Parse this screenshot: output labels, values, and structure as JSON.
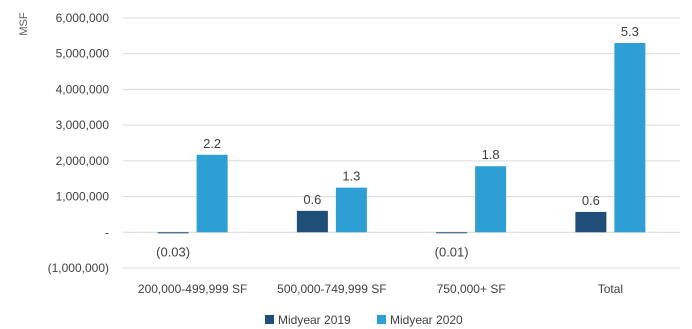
{
  "chart_data": {
    "type": "bar",
    "ylabel": "MSF",
    "ylim": [
      -1000000,
      6000000
    ],
    "yticks": [
      -1000000,
      0,
      1000000,
      2000000,
      3000000,
      4000000,
      5000000,
      6000000
    ],
    "ytick_labels": [
      "(1,000,000)",
      "-",
      "1,000,000",
      "2,000,000",
      "3,000,000",
      "4,000,000",
      "5,000,000",
      "6,000,000"
    ],
    "categories": [
      "200,000-499,999 SF",
      "500,000-749,999 SF",
      "750,000+ SF",
      "Total"
    ],
    "series": [
      {
        "name": "Midyear 2019",
        "color": "#1f4e79",
        "values": [
          -30000,
          600000,
          -10000,
          570000
        ],
        "labels": [
          "(0.03)",
          "0.6",
          "(0.01)",
          "0.6"
        ]
      },
      {
        "name": "Midyear 2020",
        "color": "#2e9fd4",
        "values": [
          2170000,
          1250000,
          1850000,
          5300000
        ],
        "labels": [
          "2.2",
          "1.3",
          "1.8",
          "5.3"
        ]
      }
    ],
    "grid": true,
    "legend": "bottom"
  }
}
